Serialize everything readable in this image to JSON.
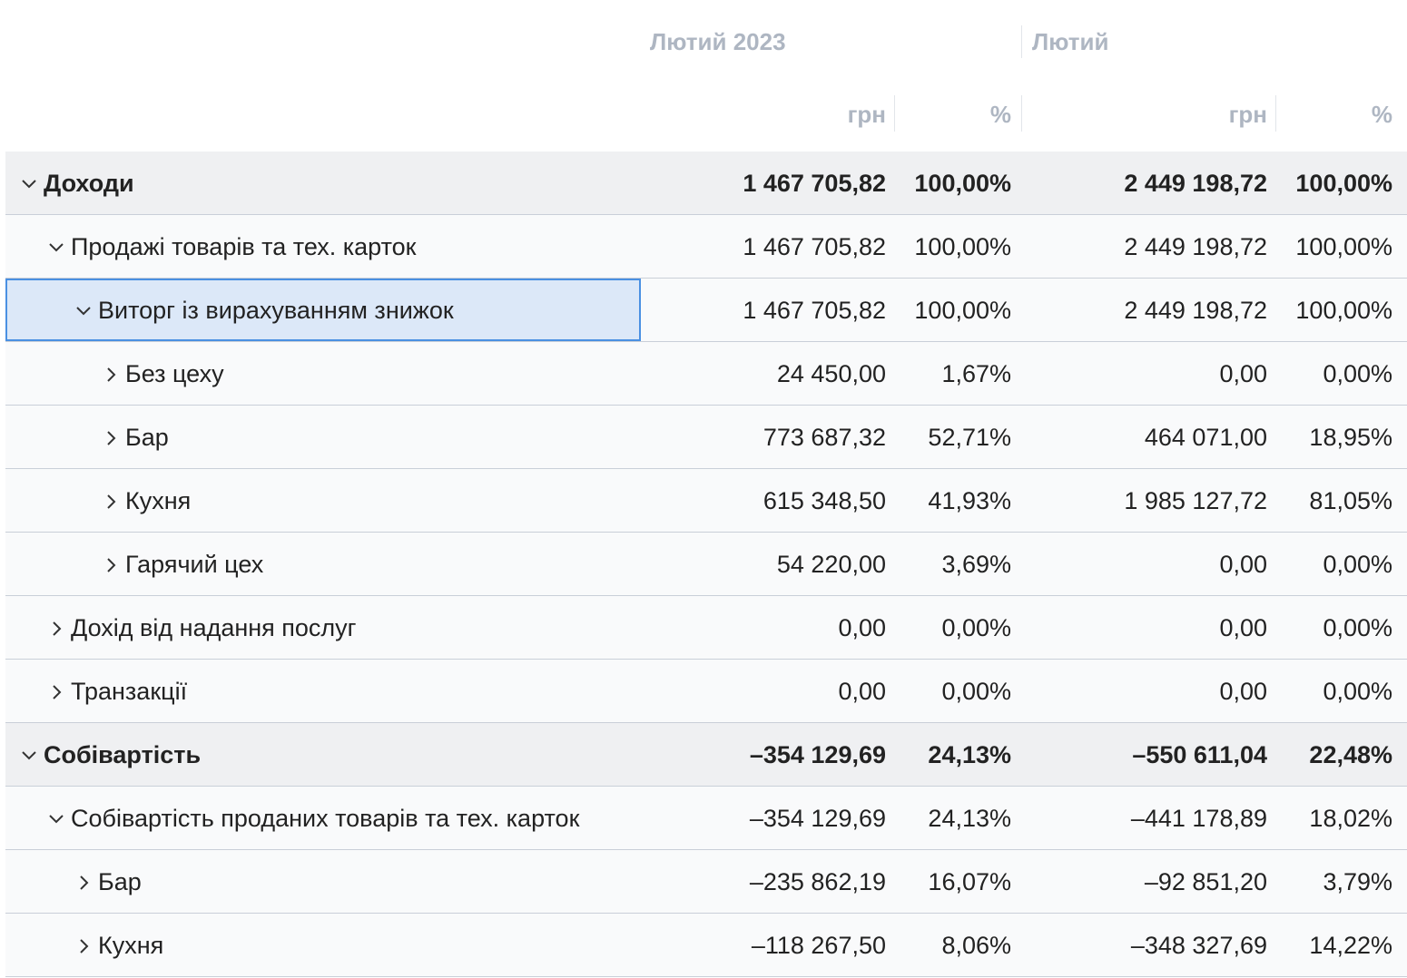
{
  "table": {
    "groups": [
      "Лютий 2023",
      "Лютий"
    ],
    "units": [
      "грн",
      "%",
      "грн",
      "%"
    ],
    "rows": [
      {
        "label": "Доходи",
        "level": 0,
        "expanded": true,
        "bold": true,
        "cells": [
          "1 467 705,82",
          "100,00%",
          "2 449 198,72",
          "100,00%"
        ]
      },
      {
        "label": "Продажі товарів та тех. карток",
        "level": 1,
        "expanded": true,
        "bold": false,
        "cells": [
          "1 467 705,82",
          "100,00%",
          "2 449 198,72",
          "100,00%"
        ]
      },
      {
        "label": "Виторг із вирахуванням знижок",
        "level": 2,
        "expanded": true,
        "bold": false,
        "selected": true,
        "cells": [
          "1 467 705,82",
          "100,00%",
          "2 449 198,72",
          "100,00%"
        ]
      },
      {
        "label": "Без цеху",
        "level": 3,
        "expanded": false,
        "bold": false,
        "cells": [
          "24 450,00",
          "1,67%",
          "0,00",
          "0,00%"
        ]
      },
      {
        "label": "Бар",
        "level": 3,
        "expanded": false,
        "bold": false,
        "cells": [
          "773 687,32",
          "52,71%",
          "464 071,00",
          "18,95%"
        ]
      },
      {
        "label": "Кухня",
        "level": 3,
        "expanded": false,
        "bold": false,
        "cells": [
          "615 348,50",
          "41,93%",
          "1 985 127,72",
          "81,05%"
        ]
      },
      {
        "label": "Гарячий цех",
        "level": 3,
        "expanded": false,
        "bold": false,
        "cells": [
          "54 220,00",
          "3,69%",
          "0,00",
          "0,00%"
        ]
      },
      {
        "label": "Дохід від надання послуг",
        "level": 1,
        "expanded": false,
        "bold": false,
        "cells": [
          "0,00",
          "0,00%",
          "0,00",
          "0,00%"
        ]
      },
      {
        "label": "Транзакції",
        "level": 1,
        "expanded": false,
        "bold": false,
        "cells": [
          "0,00",
          "0,00%",
          "0,00",
          "0,00%"
        ]
      },
      {
        "label": "Собівартість",
        "level": 0,
        "expanded": true,
        "bold": true,
        "cells": [
          "–354 129,69",
          "24,13%",
          "–550 611,04",
          "22,48%"
        ]
      },
      {
        "label": "Собівартість проданих товарів та тех. карток",
        "level": 1,
        "expanded": true,
        "bold": false,
        "cells": [
          "–354 129,69",
          "24,13%",
          "–441 178,89",
          "18,02%"
        ]
      },
      {
        "label": "Бар",
        "level": 2,
        "expanded": false,
        "bold": false,
        "cells": [
          "–235 862,19",
          "16,07%",
          "–92 851,20",
          "3,79%"
        ]
      },
      {
        "label": "Кухня",
        "level": 2,
        "expanded": false,
        "bold": false,
        "cells": [
          "–118 267,50",
          "8,06%",
          "–348 327,69",
          "14,22%"
        ]
      }
    ]
  }
}
